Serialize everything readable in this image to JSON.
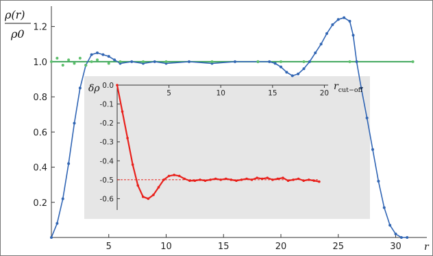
{
  "chart_data": [
    {
      "type": "line",
      "main": true,
      "xlabel": "r",
      "ylabel_num": "ρ(r)",
      "ylabel_den": "ρ0",
      "xlim": [
        0,
        32
      ],
      "ylim": [
        0,
        1.3
      ],
      "xticks": [
        5,
        10,
        15,
        20,
        25,
        30
      ],
      "yticks": [
        0.2,
        0.4,
        0.6,
        0.8,
        1.0,
        1.2
      ],
      "ytick_labels": [
        "0.2",
        "0.4",
        "0.6",
        "0.8",
        "1.0",
        "1.2"
      ],
      "colors": {
        "blue": "#3266b3",
        "blue_line": "#2f64b4",
        "green": "#5cbf6a",
        "green_line": "#3da55a"
      },
      "series": [
        {
          "style": "blue-points",
          "x": [
            0.0,
            0.5,
            1.0,
            1.5,
            2.0,
            2.5,
            3.0,
            3.5,
            4.0,
            4.5,
            5.0,
            5.5,
            6.0,
            7.0,
            8.0,
            9.0,
            10.0,
            12.0,
            14.0,
            16.0,
            18.0,
            19.0,
            19.5,
            20.0,
            20.5,
            21.0,
            21.5,
            22.0,
            22.5,
            23.0,
            23.5,
            24.0,
            24.5,
            25.0,
            25.5,
            26.0,
            26.3,
            26.6,
            27.0,
            27.5,
            28.0,
            28.5,
            29.0,
            29.5,
            30.0,
            30.5,
            31.0
          ],
          "y": [
            0.0,
            0.08,
            0.22,
            0.42,
            0.65,
            0.85,
            0.98,
            1.04,
            1.05,
            1.04,
            1.03,
            1.01,
            0.99,
            1.0,
            0.99,
            1.0,
            0.99,
            1.0,
            0.99,
            1.0,
            1.0,
            1.0,
            0.99,
            0.97,
            0.94,
            0.92,
            0.93,
            0.96,
            1.0,
            1.05,
            1.1,
            1.16,
            1.21,
            1.24,
            1.25,
            1.23,
            1.15,
            1.0,
            0.85,
            0.68,
            0.5,
            0.32,
            0.17,
            0.07,
            0.02,
            0.0,
            0.0
          ]
        },
        {
          "style": "green-points",
          "x": [
            0.0,
            0.5,
            1.0,
            1.5,
            2.0,
            2.5,
            3.0,
            3.5,
            4.0,
            5.0,
            6.0,
            8.0,
            10.0,
            14.0,
            18.0,
            20.0,
            22.0,
            26.0,
            31.5
          ],
          "y": [
            1.0,
            1.02,
            0.98,
            1.01,
            0.99,
            1.02,
            0.98,
            1.0,
            1.01,
            0.99,
            1.0,
            1.0,
            1.0,
            1.0,
            1.0,
            1.0,
            1.0,
            1.0,
            1.0
          ]
        }
      ]
    },
    {
      "type": "line",
      "inset": true,
      "ylabel": "δρ",
      "xlabel": "r",
      "xlabel_sub": "cut−off",
      "xlim": [
        0,
        20.5
      ],
      "ylim": [
        -0.66,
        0.0
      ],
      "xticks": [
        5,
        10,
        15,
        20
      ],
      "yticks": [
        0.0,
        -0.1,
        -0.2,
        -0.3,
        -0.4,
        -0.5,
        -0.6
      ],
      "ytick_labels": [
        "0.0",
        "-0.1",
        "-0.2",
        "-0.3",
        "-0.4",
        "-0.5",
        "-0.6"
      ],
      "reference_line": -0.5,
      "colors": {
        "curve": "#e8201b",
        "background": "#e6e6e6"
      },
      "series": [
        {
          "x": [
            0.0,
            0.5,
            1.0,
            1.5,
            2.0,
            2.5,
            3.0,
            3.5,
            4.0,
            4.5,
            5.0,
            5.5,
            6.0,
            6.5,
            7.0,
            7.5,
            8.0,
            8.5,
            9.0,
            9.5,
            10.0,
            10.5,
            11.0,
            11.5,
            12.0,
            12.5,
            13.0,
            13.5,
            14.0,
            14.5,
            15.0,
            15.5,
            16.0,
            16.5,
            17.0,
            17.5,
            18.0,
            18.5,
            19.0,
            19.5
          ],
          "y": [
            0.0,
            -0.14,
            -0.28,
            -0.42,
            -0.53,
            -0.59,
            -0.6,
            -0.58,
            -0.54,
            -0.5,
            -0.48,
            -0.475,
            -0.48,
            -0.495,
            -0.505,
            -0.505,
            -0.5,
            -0.505,
            -0.5,
            -0.495,
            -0.5,
            -0.495,
            -0.5,
            -0.505,
            -0.5,
            -0.495,
            -0.5,
            -0.49,
            -0.495,
            -0.49,
            -0.5,
            -0.495,
            -0.49,
            -0.505,
            -0.5,
            -0.495,
            -0.505,
            -0.5,
            -0.505,
            -0.51
          ]
        }
      ]
    }
  ]
}
